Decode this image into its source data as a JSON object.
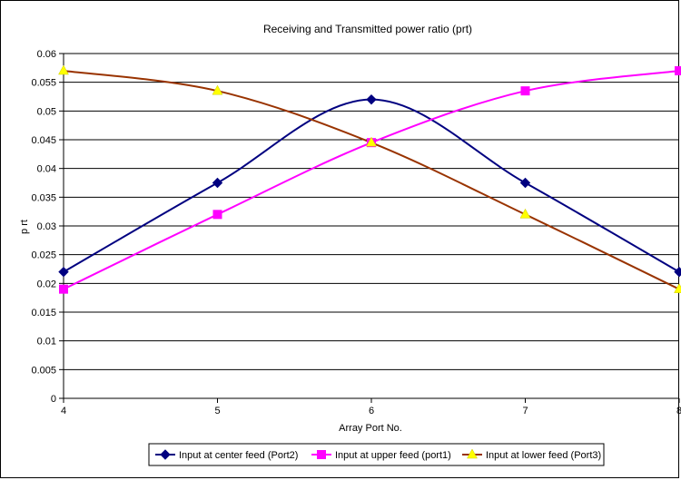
{
  "chart_data": {
    "type": "line",
    "title": "Receiving and Transmitted power ratio (prt)",
    "xlabel": "Array Port No.",
    "ylabel": "p rt",
    "x": [
      4,
      5,
      6,
      7,
      8
    ],
    "xlim": [
      4,
      8
    ],
    "ylim": [
      0,
      0.06
    ],
    "x_ticks": [
      "4",
      "5",
      "6",
      "7",
      "8"
    ],
    "y_ticks": [
      "0",
      "0.005",
      "0.01",
      "0.015",
      "0.02",
      "0.025",
      "0.03",
      "0.035",
      "0.04",
      "0.045",
      "0.05",
      "0.055",
      "0.06"
    ],
    "grid": "horizontal",
    "legend_position": "bottom",
    "series": [
      {
        "name": "Input at center feed (Port2)",
        "color": "#000080",
        "marker": "diamond",
        "values": [
          0.022,
          0.0375,
          0.052,
          0.0375,
          0.022
        ]
      },
      {
        "name": "Input at upper feed (port1)",
        "color": "#FF00FF",
        "marker": "square",
        "values": [
          0.019,
          0.032,
          0.0445,
          0.0535,
          0.057
        ]
      },
      {
        "name": "Input at lower feed (Port3)",
        "color": "#993300",
        "marker": "triangle",
        "marker_color": "#FFFF00",
        "values": [
          0.057,
          0.0535,
          0.0445,
          0.032,
          0.019
        ]
      }
    ]
  }
}
